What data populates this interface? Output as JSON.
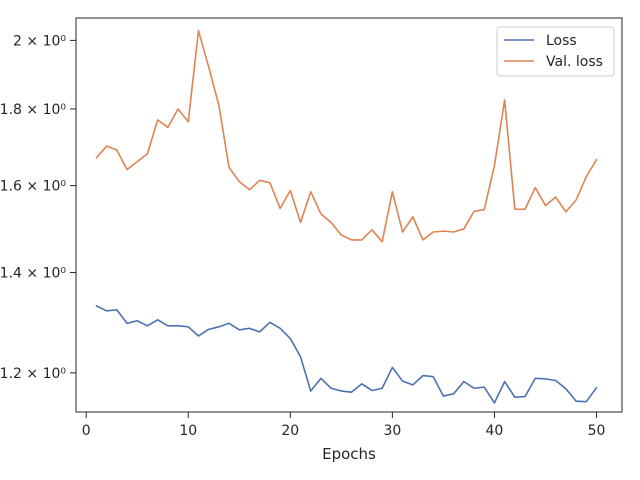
{
  "chart_data": {
    "type": "line",
    "title": "",
    "xlabel": "Epochs",
    "ylabel": "",
    "yscale": "log",
    "grid": false,
    "legend_position": "top-right",
    "xlim": [
      -1,
      52.5
    ],
    "ylim": [
      1.13,
      2.07
    ],
    "x_ticks": [
      0,
      10,
      20,
      30,
      40,
      50
    ],
    "x_tick_labels": [
      "0",
      "10",
      "20",
      "30",
      "40",
      "50"
    ],
    "y_ticks": [
      1.2,
      1.4,
      1.6,
      1.8,
      2.0
    ],
    "y_tick_labels": [
      "1.2 × 10⁰",
      "1.4 × 10⁰",
      "1.6 × 10⁰",
      "1.8 × 10⁰",
      "2 × 10⁰"
    ],
    "x": [
      1,
      2,
      3,
      4,
      5,
      6,
      7,
      8,
      9,
      10,
      11,
      12,
      13,
      14,
      15,
      16,
      17,
      18,
      19,
      20,
      21,
      22,
      23,
      24,
      25,
      26,
      27,
      28,
      29,
      30,
      31,
      32,
      33,
      34,
      35,
      36,
      37,
      38,
      39,
      40,
      41,
      42,
      43,
      44,
      45,
      46,
      47,
      48,
      49,
      50
    ],
    "series": [
      {
        "name": "Loss",
        "color": "#4c72b0",
        "values": [
          1.33,
          1.32,
          1.322,
          1.295,
          1.3,
          1.29,
          1.302,
          1.29,
          1.29,
          1.288,
          1.27,
          1.283,
          1.288,
          1.295,
          1.282,
          1.285,
          1.278,
          1.297,
          1.285,
          1.265,
          1.23,
          1.167,
          1.19,
          1.172,
          1.167,
          1.165,
          1.18,
          1.168,
          1.172,
          1.21,
          1.185,
          1.178,
          1.195,
          1.193,
          1.158,
          1.162,
          1.184,
          1.172,
          1.174,
          1.146,
          1.184,
          1.156,
          1.157,
          1.19,
          1.189,
          1.186,
          1.171,
          1.149,
          1.148,
          1.173
        ]
      },
      {
        "name": "Val. loss",
        "color": "#dd8452",
        "values": [
          1.67,
          1.7,
          1.69,
          1.64,
          1.66,
          1.68,
          1.77,
          1.75,
          1.8,
          1.765,
          2.03,
          1.92,
          1.81,
          1.645,
          1.61,
          1.59,
          1.613,
          1.607,
          1.545,
          1.588,
          1.512,
          1.585,
          1.532,
          1.512,
          1.483,
          1.472,
          1.472,
          1.495,
          1.468,
          1.585,
          1.49,
          1.525,
          1.472,
          1.49,
          1.492,
          1.49,
          1.497,
          1.538,
          1.542,
          1.65,
          1.825,
          1.543,
          1.543,
          1.595,
          1.552,
          1.572,
          1.537,
          1.565,
          1.622,
          1.665
        ]
      }
    ]
  }
}
